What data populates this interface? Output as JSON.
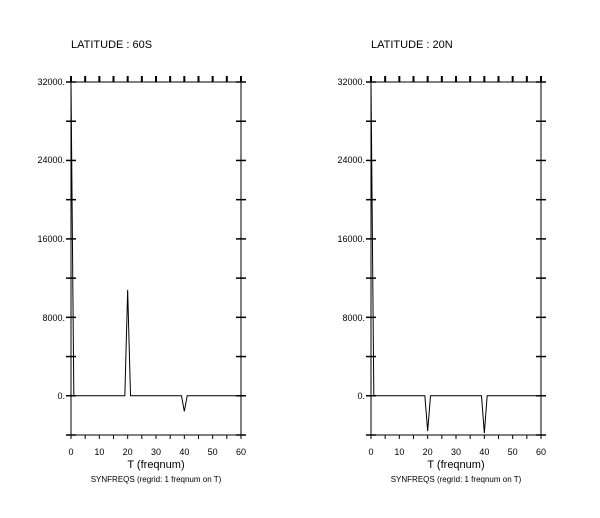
{
  "chart_data": [
    {
      "type": "line",
      "title": "LATITUDE : 60S",
      "xlabel": "T (freqnum)",
      "caption": "SYNFREQS (regrid: 1 freqnum on T)",
      "xlim": [
        0,
        60
      ],
      "ylim": [
        -4000,
        32000
      ],
      "x_ticks": [
        "0",
        "10",
        "20",
        "30",
        "40",
        "50",
        "60"
      ],
      "y_ticks": [
        "0.",
        "8000.",
        "16000.",
        "24000.",
        "32000."
      ],
      "series": [
        {
          "x": [
            0,
            1,
            2,
            19,
            20,
            21,
            39,
            40,
            41,
            60
          ],
          "values": [
            32000,
            0,
            0,
            0,
            10800,
            0,
            0,
            -1600,
            0,
            0
          ]
        }
      ]
    },
    {
      "type": "line",
      "title": "LATITUDE : 20N",
      "xlabel": "T (freqnum)",
      "caption": "SYNFREQS (regrid: 1 freqnum on T)",
      "xlim": [
        0,
        60
      ],
      "ylim": [
        -4000,
        32000
      ],
      "x_ticks": [
        "0",
        "10",
        "20",
        "30",
        "40",
        "50",
        "60"
      ],
      "y_ticks": [
        "0.",
        "8000.",
        "16000.",
        "24000.",
        "32000."
      ],
      "series": [
        {
          "x": [
            0,
            1,
            2,
            19,
            20,
            21,
            39,
            40,
            41,
            60
          ],
          "values": [
            32000,
            0,
            0,
            0,
            -3600,
            0,
            0,
            -3800,
            0,
            0
          ]
        }
      ]
    }
  ]
}
